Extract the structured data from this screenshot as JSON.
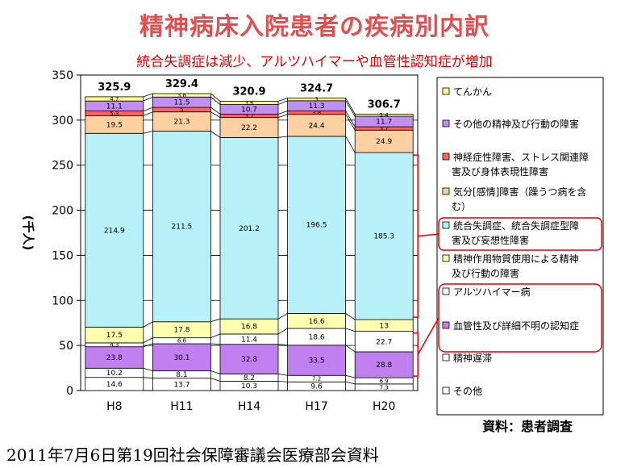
{
  "title": "精神病床入院患者の疾病別内訳",
  "subtitle": "統合失調症は減少、アルツハイマーや血管性認知症が増加",
  "source": "資料：患者調査",
  "footer": "2011年7月6日第19回社会保障審議会医療部会資料",
  "chart_data": {
    "type": "bar",
    "stacked": true,
    "categories": [
      "H8",
      "H11",
      "H14",
      "H17",
      "H20"
    ],
    "totals": [
      "325.9",
      "329.4",
      "320.9",
      "324.7",
      "306.7"
    ],
    "ylabel": "(千人)",
    "ylim": [
      0,
      350
    ],
    "yticks": [
      0,
      50,
      100,
      150,
      200,
      250,
      300,
      350
    ],
    "grid": true,
    "legend_position": "right",
    "series": [
      {
        "name": "その他",
        "color": "#ffffff",
        "values": [
          14.6,
          13.7,
          10.3,
          9.6,
          7.3
        ]
      },
      {
        "name": "精神遅滞",
        "color": "#ffffff",
        "values": [
          10.2,
          8.1,
          8.2,
          7.2,
          6.9
        ]
      },
      {
        "name": "血管性及び詳細不明の認知症",
        "color": "#c080f0",
        "values": [
          23.8,
          30.1,
          32.8,
          33.5,
          28.8
        ]
      },
      {
        "name": "アルツハイマー病",
        "color": "#ffffff",
        "values": [
          4.3,
          6.6,
          11.4,
          18.6,
          22.7
        ]
      },
      {
        "name": "精神作用物質使用による精神及び行動の障害",
        "color": "#ffffb0",
        "values": [
          17.5,
          17.8,
          16.8,
          16.6,
          13
        ]
      },
      {
        "name": "統合失調症、統合失調症型障害及び妄想性障害",
        "color": "#b8f0f8",
        "values": [
          214.9,
          211.5,
          201.2,
          196.5,
          185.3
        ]
      },
      {
        "name": "気分[感情]障害（躁うつ病を含む）",
        "color": "#fcd0a0",
        "values": [
          19.5,
          21.3,
          22.2,
          24.4,
          24.9
        ]
      },
      {
        "name": "神経症性障害、ストレス関連障害及び身体表現性障害",
        "color": "#ff6060",
        "values": [
          5.3,
          5,
          3.7,
          3.8,
          3.7
        ]
      },
      {
        "name": "その他の精神及び行動の障害",
        "color": "#c090f0",
        "values": [
          11.1,
          11.5,
          10.7,
          11.3,
          11.7
        ]
      },
      {
        "name": "てんかん",
        "color": "#ffff90",
        "values": [
          4.7,
          3.8,
          3.6,
          3,
          2.4
        ]
      }
    ],
    "legend": [
      {
        "label": "てんかん",
        "color": "#ffff90"
      },
      {
        "label": "その他の精神及び行動の障害",
        "color": "#c090f0"
      },
      {
        "label": "神経症性障害、ストレス関連障害及び身体表現性障害",
        "color": "#ff6060"
      },
      {
        "label": "気分[感情]障害（躁うつ病を含む）",
        "color": "#fcd0a0"
      },
      {
        "label": "統合失調症、統合失調症型障害及び妄想性障害",
        "color": "#b8f0f8"
      },
      {
        "label": "精神作用物質使用による精神及び行動の障害",
        "color": "#ffffb0"
      },
      {
        "label": "アルツハイマー病",
        "color": "#ffffff"
      },
      {
        "label": "血管性及び詳細不明の認知症",
        "color": "#c080f0"
      },
      {
        "label": "精神遅滞",
        "color": "#ffffff"
      },
      {
        "label": "その他",
        "color": "#ffffff"
      }
    ],
    "highlight_color": "#e00000"
  }
}
